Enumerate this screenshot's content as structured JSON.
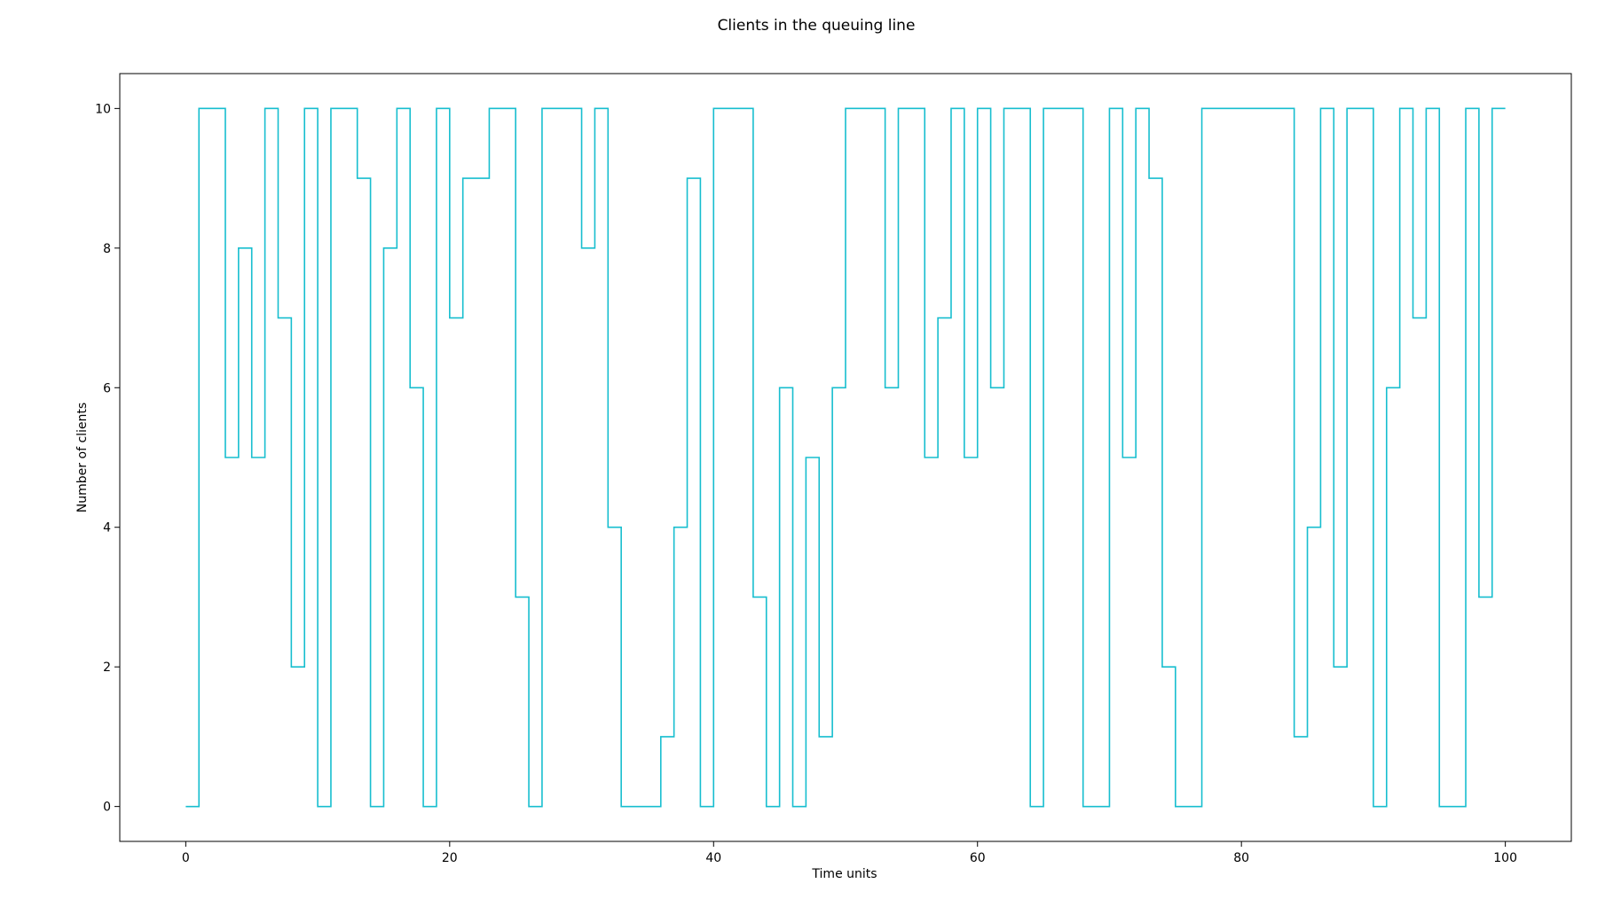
{
  "chart_data": {
    "type": "line",
    "drawstyle": "steps-post",
    "title": "Clients in the queuing line",
    "xlabel": "Time units",
    "ylabel": "Number of clients",
    "xlim": [
      -5,
      105
    ],
    "ylim": [
      -0.5,
      10.5
    ],
    "xticks": [
      0,
      20,
      40,
      60,
      80,
      100
    ],
    "yticks": [
      0,
      2,
      4,
      6,
      8,
      10
    ],
    "grid": false,
    "line_color": "#17becf",
    "series": [
      {
        "x": [
          0,
          1,
          2,
          3,
          4,
          5,
          6,
          7,
          8,
          9,
          10,
          11,
          12,
          13,
          14,
          15,
          16,
          17,
          18,
          19,
          20,
          21,
          22,
          23,
          24,
          25,
          26,
          27,
          28,
          29,
          30,
          31,
          32,
          33,
          34,
          35,
          36,
          37,
          38,
          39,
          40,
          41,
          42,
          43,
          44,
          45,
          46,
          47,
          48,
          49,
          50,
          51,
          52,
          53,
          54,
          55,
          56,
          57,
          58,
          59,
          60,
          61,
          62,
          63,
          64,
          65,
          66,
          67,
          68,
          69,
          70,
          71,
          72,
          73,
          74,
          75,
          76,
          77,
          78,
          79,
          80,
          81,
          82,
          83,
          84,
          85,
          86,
          87,
          88,
          89,
          90,
          91,
          92,
          93,
          94,
          95,
          96,
          97,
          98,
          99,
          100
        ],
        "y": [
          0,
          10,
          10,
          5,
          8,
          5,
          10,
          7,
          2,
          10,
          0,
          10,
          10,
          9,
          0,
          8,
          10,
          6,
          0,
          10,
          7,
          9,
          9,
          10,
          10,
          3,
          0,
          10,
          10,
          10,
          8,
          10,
          4,
          0,
          0,
          0,
          1,
          4,
          9,
          0,
          10,
          10,
          10,
          3,
          0,
          6,
          0,
          5,
          1,
          6,
          10,
          10,
          10,
          6,
          10,
          10,
          5,
          7,
          10,
          5,
          10,
          6,
          10,
          10,
          0,
          10,
          10,
          10,
          0,
          0,
          10,
          5,
          10,
          9,
          2,
          0,
          0,
          10,
          10,
          10,
          10,
          10,
          10,
          10,
          1,
          4,
          10,
          2,
          10,
          10,
          0,
          6,
          10,
          7,
          10,
          0,
          0,
          10,
          3,
          10,
          10
        ]
      }
    ]
  }
}
